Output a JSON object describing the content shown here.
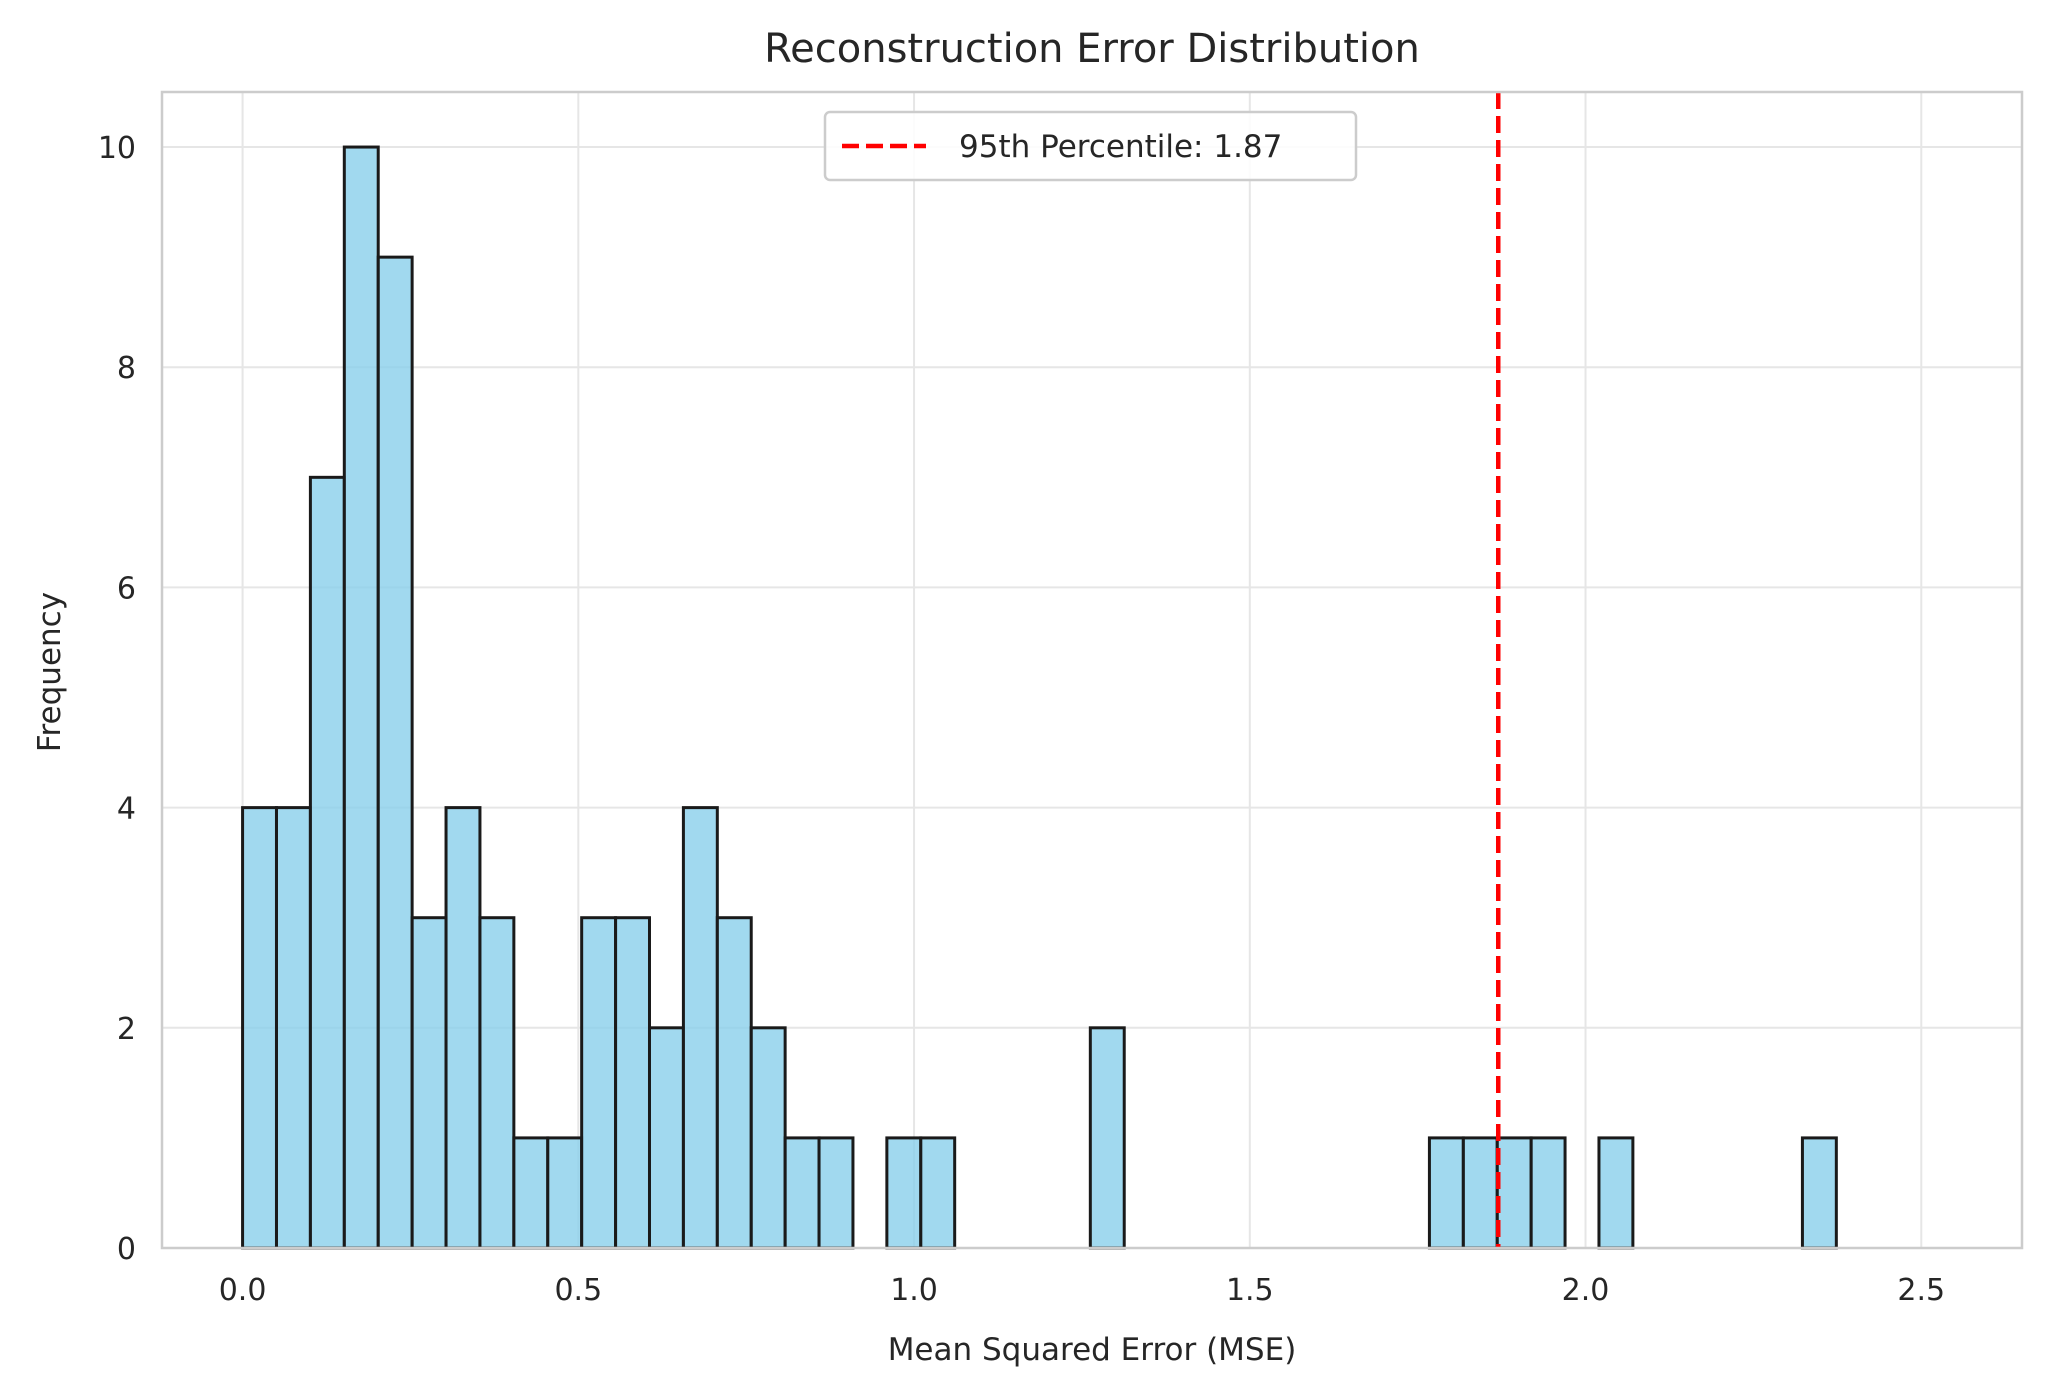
{
  "chart_data": {
    "type": "bar",
    "subtype": "histogram",
    "title": "Reconstruction Error Distribution",
    "xlabel": "Mean Squared Error (MSE)",
    "ylabel": "Frequency",
    "xlim": [
      -0.12,
      2.65
    ],
    "ylim": [
      0,
      10.5
    ],
    "xticks": [
      0.0,
      0.5,
      1.0,
      1.5,
      2.0,
      2.5
    ],
    "xtick_labels": [
      "0.0",
      "0.5",
      "1.0",
      "1.5",
      "2.0",
      "2.5"
    ],
    "yticks": [
      0,
      2,
      4,
      6,
      8,
      10
    ],
    "ytick_labels": [
      "0",
      "2",
      "4",
      "6",
      "8",
      "10"
    ],
    "bin_start": 0.0,
    "bin_width": 0.0505,
    "counts": [
      4,
      4,
      7,
      10,
      9,
      3,
      4,
      3,
      1,
      1,
      3,
      3,
      2,
      4,
      3,
      2,
      1,
      1,
      0,
      1,
      1,
      0,
      0,
      0,
      0,
      2,
      0,
      0,
      0,
      0,
      0,
      0,
      0,
      0,
      0,
      1,
      1,
      1,
      1,
      0,
      1,
      0,
      0,
      0,
      0,
      0,
      1
    ],
    "bar_color": "#87CEEB",
    "bar_edge_color": "#1a1a1a",
    "grid": true,
    "threshold": {
      "value": 1.87,
      "label": "95th Percentile: 1.87",
      "color": "#ff0000",
      "style": "dashed"
    },
    "legend_position": "upper center"
  }
}
